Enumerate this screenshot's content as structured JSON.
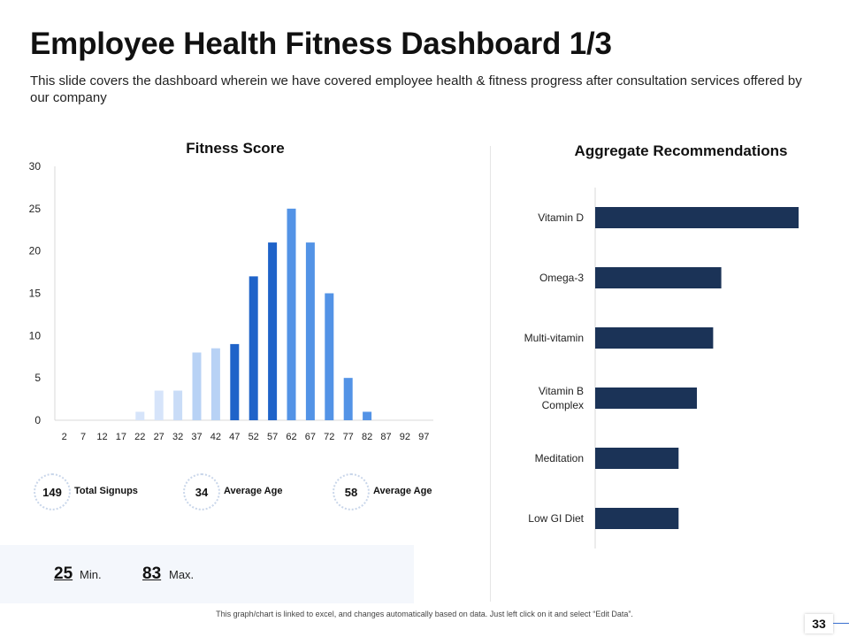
{
  "header": {
    "title": "Employee Health Fitness Dashboard 1/3",
    "subtitle": "This slide covers the dashboard wherein we have covered employee health & fitness progress after consultation services offered by our company"
  },
  "chart_data": [
    {
      "type": "bar",
      "title": "Fitness Score",
      "categories": [
        "2",
        "7",
        "12",
        "17",
        "22",
        "27",
        "32",
        "37",
        "42",
        "47",
        "52",
        "57",
        "62",
        "67",
        "72",
        "77",
        "82",
        "87",
        "92",
        "97"
      ],
      "values": [
        0,
        0,
        0,
        0,
        1,
        3.5,
        3.5,
        8,
        8.5,
        9,
        17,
        21,
        25,
        21,
        15,
        5,
        1,
        0,
        0,
        0
      ],
      "bar_colors": [
        "#d6e4fa",
        "#d6e4fa",
        "#d6e4fa",
        "#d6e4fa",
        "#d6e4fa",
        "#d6e4fa",
        "#c9dcf7",
        "#b8d2f5",
        "#b8d2f5",
        "#1f63c9",
        "#1f63c9",
        "#1f63c9",
        "#5393e6",
        "#5393e6",
        "#5393e6",
        "#5393e6",
        "#5393e6",
        "#5393e6",
        "#5393e6",
        "#5393e6"
      ],
      "ylim": [
        0,
        30
      ],
      "yticks": [
        0,
        5,
        10,
        15,
        20,
        25,
        30
      ],
      "xlabel": "",
      "ylabel": "",
      "grid": false
    },
    {
      "type": "bar",
      "orientation": "horizontal",
      "title": "Aggregate Recommendations",
      "categories": [
        "Vitamin D",
        "Omega-3",
        "Multi-vitamin",
        "Vitamin B Complex",
        "Meditation",
        "Low GI Diet"
      ],
      "category_lines": [
        [
          "Vitamin D"
        ],
        [
          "Omega-3"
        ],
        [
          "Multi-vitamin"
        ],
        [
          "Vitamin B",
          "Complex"
        ],
        [
          "Meditation"
        ],
        [
          "Low GI Diet"
        ]
      ],
      "values": [
        100,
        62,
        58,
        50,
        41,
        41
      ],
      "xlim": [
        0,
        100
      ],
      "color": "#1b3357",
      "axis_labels_shown": false
    }
  ],
  "stats": [
    {
      "value": "149",
      "label": "Total Signups"
    },
    {
      "value": "34",
      "label": "Average Age"
    },
    {
      "value": "58",
      "label": "Average Age"
    }
  ],
  "minmax": {
    "min_value": "25",
    "min_label": "Min.",
    "max_value": "83",
    "max_label": "Max."
  },
  "footnote": "This graph/chart is linked to excel, and changes automatically based on data. Just left click on it and select “Edit Data”.",
  "page_number": "33",
  "colors": {
    "accent": "#1f63c9",
    "navy": "#1b3357",
    "band": "#f4f7fc"
  }
}
